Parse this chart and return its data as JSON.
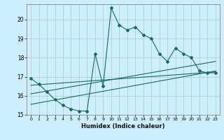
{
  "xlabel": "Humidex (Indice chaleur)",
  "bg_color": "#cceeff",
  "grid_color": "#aacccc",
  "line_color": "#1a6b5e",
  "xlim": [
    -0.5,
    23.5
  ],
  "ylim": [
    15,
    20.8
  ],
  "yticks": [
    15,
    16,
    17,
    18,
    19,
    20
  ],
  "xticks": [
    0,
    1,
    2,
    3,
    4,
    5,
    6,
    7,
    8,
    9,
    10,
    11,
    12,
    13,
    14,
    15,
    16,
    17,
    18,
    19,
    20,
    21,
    22,
    23
  ],
  "main_x": [
    0,
    1,
    2,
    3,
    4,
    5,
    6,
    7,
    8,
    9,
    10,
    11,
    12,
    13,
    14,
    15,
    16,
    17,
    18,
    19,
    20,
    21,
    22,
    23
  ],
  "main_y": [
    16.9,
    16.6,
    16.2,
    15.8,
    15.5,
    15.3,
    15.2,
    15.2,
    18.2,
    16.5,
    20.6,
    19.7,
    19.45,
    19.6,
    19.2,
    19.0,
    18.2,
    17.8,
    18.5,
    18.2,
    18.0,
    17.3,
    17.2,
    17.2
  ],
  "trend1_x": [
    0,
    23
  ],
  "trend1_y": [
    16.55,
    17.25
  ],
  "trend2_x": [
    0,
    23
  ],
  "trend2_y": [
    16.1,
    17.8
  ],
  "trend3_x": [
    0,
    23
  ],
  "trend3_y": [
    15.55,
    17.3
  ]
}
